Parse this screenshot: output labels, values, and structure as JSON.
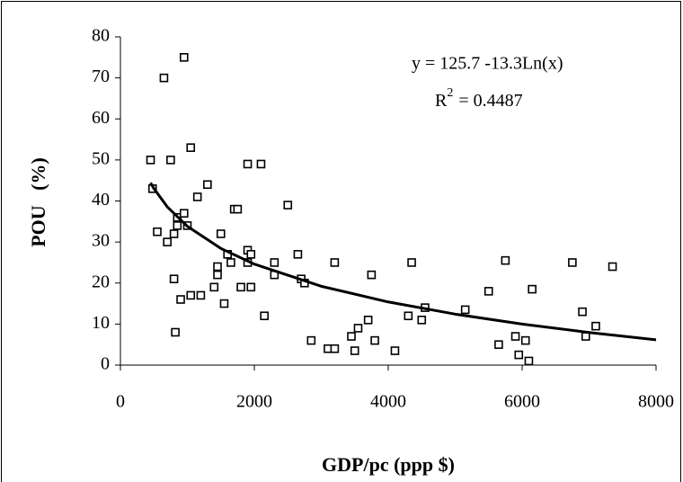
{
  "chart_data": {
    "type": "scatter",
    "x_label": "GDP/pc (ppp $)",
    "y_label": "POU   (%)",
    "equation": "y = 125.7 -13.3Ln(x)",
    "r_squared": {
      "symbol": "R",
      "exponent": "2",
      "value": "= 0.4487"
    },
    "xlim": [
      0,
      8000
    ],
    "xticks": [
      0,
      2000,
      4000,
      6000,
      8000
    ],
    "ylim": [
      0,
      80
    ],
    "yticks": [
      0,
      10,
      20,
      30,
      40,
      50,
      60,
      70,
      80
    ],
    "marker_color": "#000000",
    "line_color": "#000000",
    "x": [
      450,
      480,
      550,
      650,
      700,
      750,
      800,
      800,
      820,
      850,
      850,
      900,
      950,
      950,
      1000,
      1050,
      1050,
      1150,
      1200,
      1300,
      1400,
      1450,
      1450,
      1500,
      1550,
      1600,
      1650,
      1700,
      1750,
      1800,
      1900,
      1900,
      1900,
      1950,
      1950,
      2100,
      2150,
      2300,
      2300,
      2500,
      2650,
      2700,
      2750,
      2850,
      3100,
      3200,
      3200,
      3450,
      3500,
      3550,
      3700,
      3750,
      3800,
      4100,
      4300,
      4350,
      4500,
      4550,
      5150,
      5500,
      5650,
      5750,
      5900,
      5950,
      6050,
      6100,
      6150,
      6750,
      6900,
      6950,
      7100,
      7350
    ],
    "y": [
      50,
      43,
      32.5,
      70,
      30,
      50,
      21,
      32,
      8,
      36,
      34,
      16,
      75,
      37,
      34,
      53,
      17,
      41,
      17,
      44,
      19,
      24,
      22,
      32,
      15,
      27,
      25,
      38,
      38,
      19,
      49,
      28,
      25,
      27,
      19,
      49,
      12,
      22,
      25,
      39,
      27,
      21,
      20,
      6,
      4,
      25,
      4,
      7,
      3.5,
      9,
      11,
      22,
      6,
      3.5,
      12,
      25,
      11,
      14,
      13.5,
      18,
      5,
      25.5,
      7,
      2.5,
      6,
      1,
      18.5,
      25,
      13,
      7,
      9.5,
      24
    ],
    "trendline": {
      "x": [
        450,
        500,
        700,
        1000,
        1500,
        2000,
        3000,
        4000,
        5000,
        6000,
        7000,
        8000
      ],
      "y": [
        44.45,
        43.05,
        38.57,
        33.83,
        28.43,
        24.61,
        19.21,
        15.39,
        12.42,
        10.0,
        7.95,
        6.17
      ]
    }
  }
}
